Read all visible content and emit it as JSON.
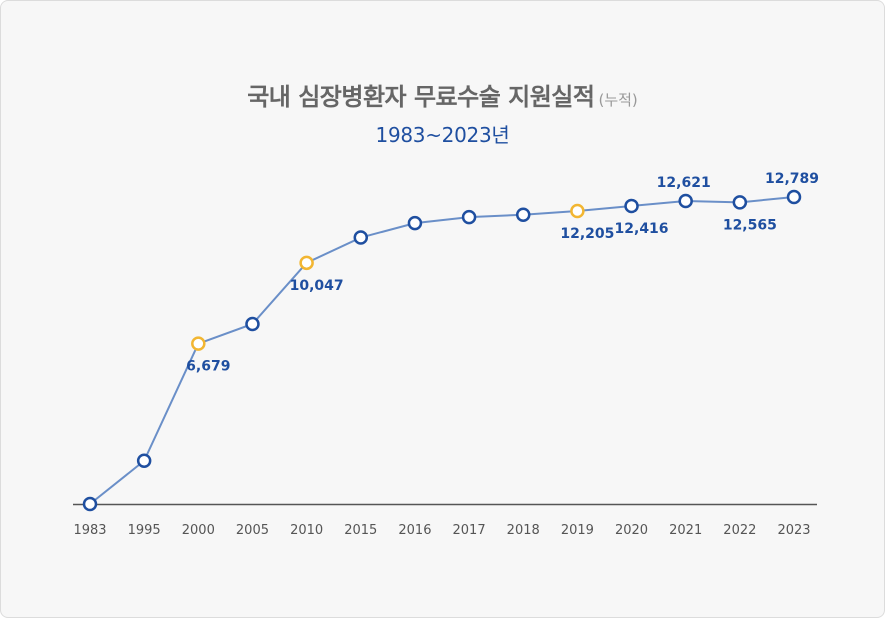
{
  "chart_data": {
    "type": "line",
    "title": "국내 심장병환자 무료수술 지원실적",
    "title_note": "(누적)",
    "subtitle": "1983~2023년",
    "xlabel": "",
    "ylabel": "",
    "categories": [
      "1983",
      "1995",
      "2000",
      "2005",
      "2010",
      "2015",
      "2016",
      "2017",
      "2018",
      "2019",
      "2020",
      "2021",
      "2022",
      "2023"
    ],
    "series": [
      {
        "values": [
          0,
          1800,
          6679,
          7500,
          10047,
          11100,
          11700,
          11950,
          12050,
          12205,
          12416,
          12621,
          12565,
          12789
        ]
      }
    ],
    "data_labels": [
      {
        "index": 2,
        "text": "6,679",
        "pos": "below"
      },
      {
        "index": 4,
        "text": "10,047",
        "pos": "below"
      },
      {
        "index": 9,
        "text": "12,205",
        "pos": "below"
      },
      {
        "index": 10,
        "text": "12,416",
        "pos": "below"
      },
      {
        "index": 11,
        "text": "12,621",
        "pos": "above"
      },
      {
        "index": 12,
        "text": "12,565",
        "pos": "below"
      },
      {
        "index": 13,
        "text": "12,789",
        "pos": "above"
      }
    ],
    "highlight_indices": [
      2,
      4,
      9
    ],
    "colors": {
      "line": "#6a8fc8",
      "marker_stroke": "#1f4fa0",
      "highlight_stroke": "#f2b632",
      "label": "#1f4fa0",
      "axis": "#555555"
    },
    "grid": false,
    "legend": "none"
  }
}
